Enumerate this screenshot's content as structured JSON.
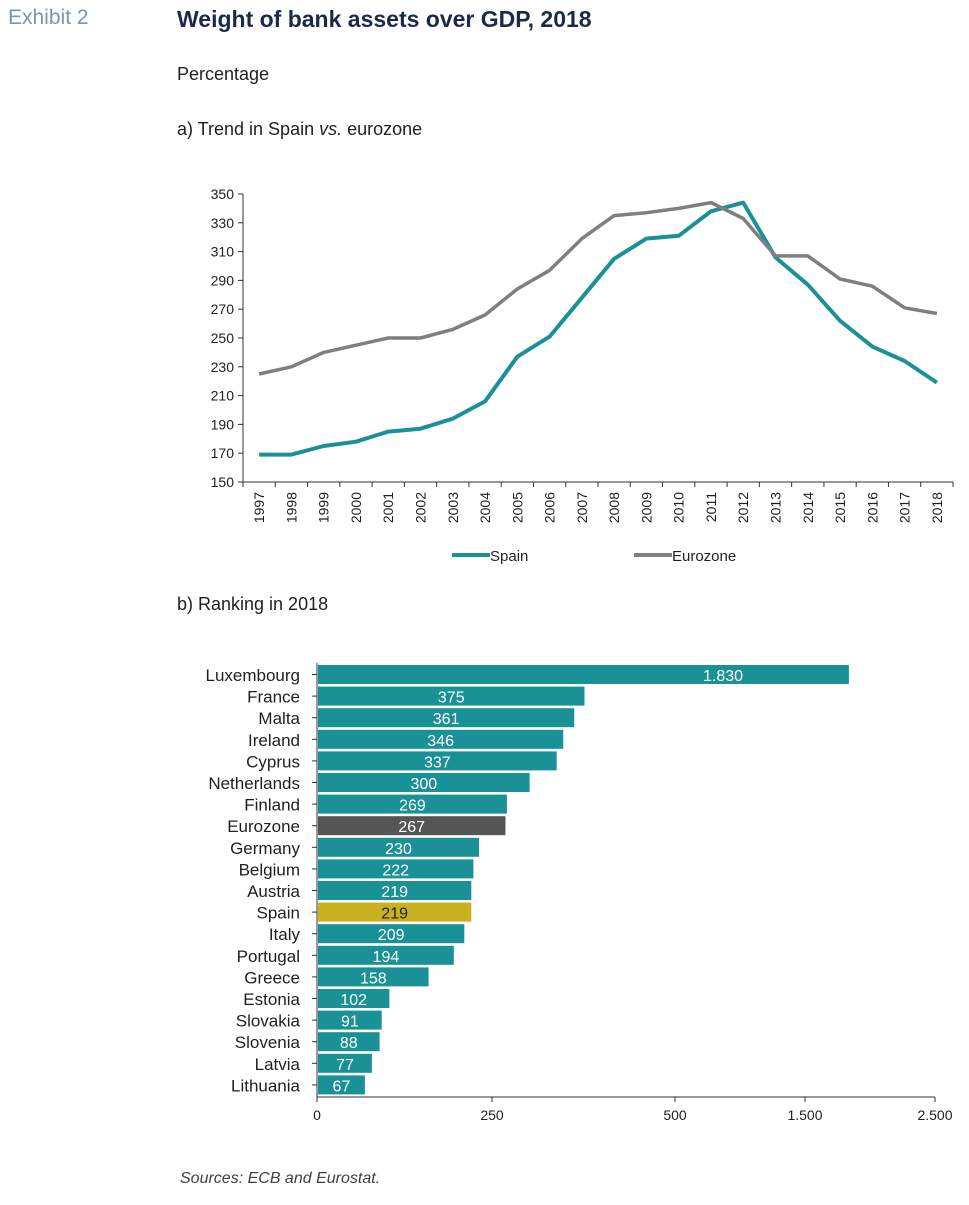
{
  "header": {
    "exhibit": "Exhibit 2",
    "title": "Weight of bank assets over GDP, 2018",
    "subtitle": "Percentage"
  },
  "panel_a_label": "a) Trend in Spain vs. eurozone",
  "panel_b_label": "b) Ranking in 2018",
  "source": "Sources: ECB and Eurostat.",
  "colors": {
    "teal": "#1a9196",
    "grey": "#7f7f7f",
    "dark": "#555555",
    "gold": "#c9b01e"
  },
  "chart_data": [
    {
      "type": "line",
      "x": [
        "1997",
        "1998",
        "1999",
        "2000",
        "2001",
        "2002",
        "2003",
        "2004",
        "2005",
        "2006",
        "2007",
        "2008",
        "2009",
        "2010",
        "2011",
        "2012",
        "2013",
        "2014",
        "2015",
        "2016",
        "2017",
        "2018"
      ],
      "series": [
        {
          "name": "Spain",
          "color": "#1a9196",
          "values": [
            169,
            169,
            175,
            178,
            185,
            187,
            194,
            206,
            237,
            251,
            278,
            305,
            319,
            321,
            338,
            344,
            306,
            287,
            262,
            244,
            234,
            219
          ]
        },
        {
          "name": "Eurozone",
          "color": "#7f7f7f",
          "values": [
            225,
            230,
            240,
            245,
            250,
            250,
            256,
            266,
            284,
            297,
            319,
            335,
            337,
            340,
            344,
            333,
            307,
            307,
            291,
            286,
            271,
            267
          ]
        }
      ],
      "ylim": [
        150,
        350
      ],
      "yticks": [
        "150",
        "170",
        "190",
        "210",
        "230",
        "250",
        "270",
        "290",
        "310",
        "330",
        "350"
      ],
      "legend": "bottom"
    },
    {
      "type": "bar",
      "orientation": "horizontal",
      "axis_break": "between 250 and 500",
      "categories": [
        "Luxembourg",
        "France",
        "Malta",
        "Ireland",
        "Cyprus",
        "Netherlands",
        "Finland",
        "Eurozone",
        "Germany",
        "Belgium",
        "Austria",
        "Spain",
        "Italy",
        "Portugal",
        "Greece",
        "Estonia",
        "Slovakia",
        "Slovenia",
        "Latvia",
        "Lithuania"
      ],
      "values": [
        1830,
        375,
        361,
        346,
        337,
        300,
        269,
        267,
        230,
        222,
        219,
        219,
        209,
        194,
        158,
        102,
        91,
        88,
        77,
        67
      ],
      "labels": [
        "1.830",
        "375",
        "361",
        "346",
        "337",
        "300",
        "269",
        "267",
        "230",
        "222",
        "219",
        "219",
        "209",
        "194",
        "158",
        "102",
        "91",
        "88",
        "77",
        "67"
      ],
      "highlight": {
        "Eurozone": "#555555",
        "Spain": "#c9b01e"
      },
      "xticks": [
        "0",
        "250",
        "500",
        "1.500",
        "2.500"
      ]
    }
  ]
}
